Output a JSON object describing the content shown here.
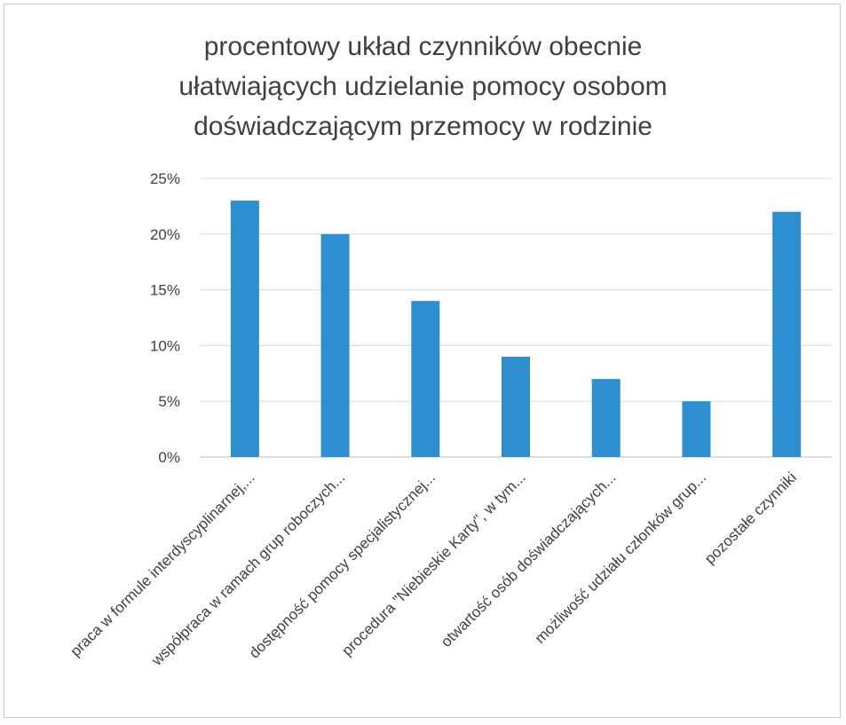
{
  "chart_data": {
    "type": "bar",
    "title": "procentowy układ czynników obecnie\nułatwiających udzielanie pomocy osobom\ndoświadczającym przemocy w rodzinie",
    "categories": [
      "praca w formule interdyscyplinarnej,...",
      "współpraca w ramach grup roboczych...",
      "dostępność pomocy specjalistycznej...",
      "procedura \"Niebieskie Karty\", w tym...",
      "otwartość osób doświadczających...",
      "możliwość udziału członków grup...",
      "pozostałe czynniki"
    ],
    "values": [
      23,
      20,
      14,
      9,
      7,
      5,
      22
    ],
    "ylim": [
      0,
      25
    ],
    "yticks": [
      0,
      5,
      10,
      15,
      20,
      25
    ],
    "ytick_labels": [
      "0%",
      "5%",
      "10%",
      "15%",
      "20%",
      "25%"
    ],
    "bar_color": "#2e8fd0",
    "grid": true,
    "legend": "none"
  }
}
